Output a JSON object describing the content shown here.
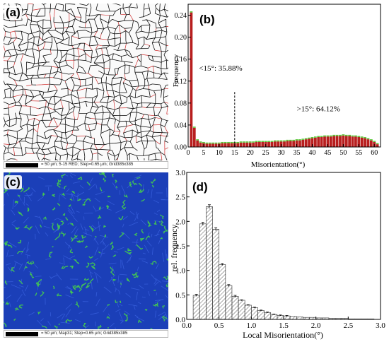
{
  "panels": {
    "a": {
      "label": "(a)",
      "scalebar": "= 50 μm; 5-15 RED; Step=0.65 μm; Grid385x385"
    },
    "b": {
      "label": "(b)"
    },
    "c": {
      "label": "(c)",
      "scalebar": "= 50 μm; Map31; Step=0.65 μm; Grid385x385"
    },
    "d": {
      "label": "(d)"
    }
  },
  "colors": {
    "bar_red": "#b81f1f",
    "bar_top_green": "#5cc83c",
    "kam_background": "#1b3fb8",
    "kam_highlight": "#46d04a",
    "hatch": "#555555"
  },
  "chart_data": [
    {
      "type": "bar",
      "panel": "b",
      "xlabel": "Misorientation(°)",
      "ylabel": "Frequency",
      "xlim": [
        0,
        62
      ],
      "ylim": [
        0,
        0.26
      ],
      "xticks": [
        0,
        5,
        10,
        15,
        20,
        25,
        30,
        35,
        40,
        45,
        50,
        55,
        60
      ],
      "yticks": [
        0.0,
        0.04,
        0.08,
        0.12,
        0.16,
        0.2,
        0.24
      ],
      "ytick_labels": [
        "0.00",
        "0.04",
        "0.08",
        "0.12",
        "0.16",
        "0.20",
        "0.24"
      ],
      "bin_width": 1,
      "x": [
        1,
        2,
        3,
        4,
        5,
        6,
        7,
        8,
        9,
        10,
        11,
        12,
        13,
        14,
        15,
        16,
        17,
        18,
        19,
        20,
        21,
        22,
        23,
        24,
        25,
        26,
        27,
        28,
        29,
        30,
        31,
        32,
        33,
        34,
        35,
        36,
        37,
        38,
        39,
        40,
        41,
        42,
        43,
        44,
        45,
        46,
        47,
        48,
        49,
        50,
        51,
        52,
        53,
        54,
        55,
        56,
        57,
        58,
        59,
        60,
        61
      ],
      "values": [
        0.245,
        0.035,
        0.012,
        0.008,
        0.007,
        0.006,
        0.006,
        0.006,
        0.006,
        0.006,
        0.007,
        0.007,
        0.007,
        0.007,
        0.007,
        0.007,
        0.008,
        0.008,
        0.008,
        0.008,
        0.008,
        0.009,
        0.009,
        0.009,
        0.009,
        0.009,
        0.009,
        0.01,
        0.01,
        0.01,
        0.01,
        0.011,
        0.011,
        0.011,
        0.012,
        0.012,
        0.013,
        0.014,
        0.015,
        0.016,
        0.017,
        0.018,
        0.018,
        0.019,
        0.019,
        0.019,
        0.02,
        0.02,
        0.02,
        0.021,
        0.02,
        0.02,
        0.019,
        0.019,
        0.018,
        0.017,
        0.016,
        0.014,
        0.012,
        0.009,
        0.005
      ],
      "threshold_x": 15,
      "annotations": [
        {
          "text": "<15°: 35.88%",
          "x": 3.5,
          "y": 0.139
        },
        {
          "text": ">15°: 64.12%",
          "x": 35,
          "y": 0.065
        }
      ]
    },
    {
      "type": "bar",
      "panel": "d",
      "xlabel": "Local Misorientation(°)",
      "ylabel": "rel. frequency",
      "xlim": [
        0,
        3.0
      ],
      "ylim": [
        0,
        3.0
      ],
      "xticks": [
        0.0,
        0.5,
        1.0,
        1.5,
        2.0,
        2.5,
        3.0
      ],
      "yticks": [
        0.0,
        0.5,
        1.0,
        1.5,
        2.0,
        2.5,
        3.0
      ],
      "bin_width": 0.1,
      "x": [
        0.15,
        0.25,
        0.35,
        0.45,
        0.55,
        0.65,
        0.75,
        0.85,
        0.95,
        1.05,
        1.15,
        1.25,
        1.35,
        1.45,
        1.55,
        1.65,
        1.75,
        1.85,
        1.95,
        2.05,
        2.15,
        2.25,
        2.35,
        2.45,
        2.55,
        2.65,
        2.75,
        2.85
      ],
      "values": [
        0.49,
        1.95,
        2.3,
        1.84,
        1.12,
        0.69,
        0.47,
        0.39,
        0.29,
        0.24,
        0.18,
        0.14,
        0.1,
        0.08,
        0.07,
        0.06,
        0.05,
        0.04,
        0.04,
        0.03,
        0.03,
        0.02,
        0.02,
        0.02,
        0.01,
        0.01,
        0.01,
        0.01
      ],
      "errors": [
        0.02,
        0.03,
        0.04,
        0.03,
        0.02,
        0.02,
        0.02,
        0.01,
        0.01,
        0.01,
        0.01,
        0.01,
        0.01,
        0.01,
        0.01,
        0,
        0,
        0,
        0,
        0,
        0,
        0,
        0,
        0,
        0,
        0,
        0,
        0
      ]
    }
  ]
}
